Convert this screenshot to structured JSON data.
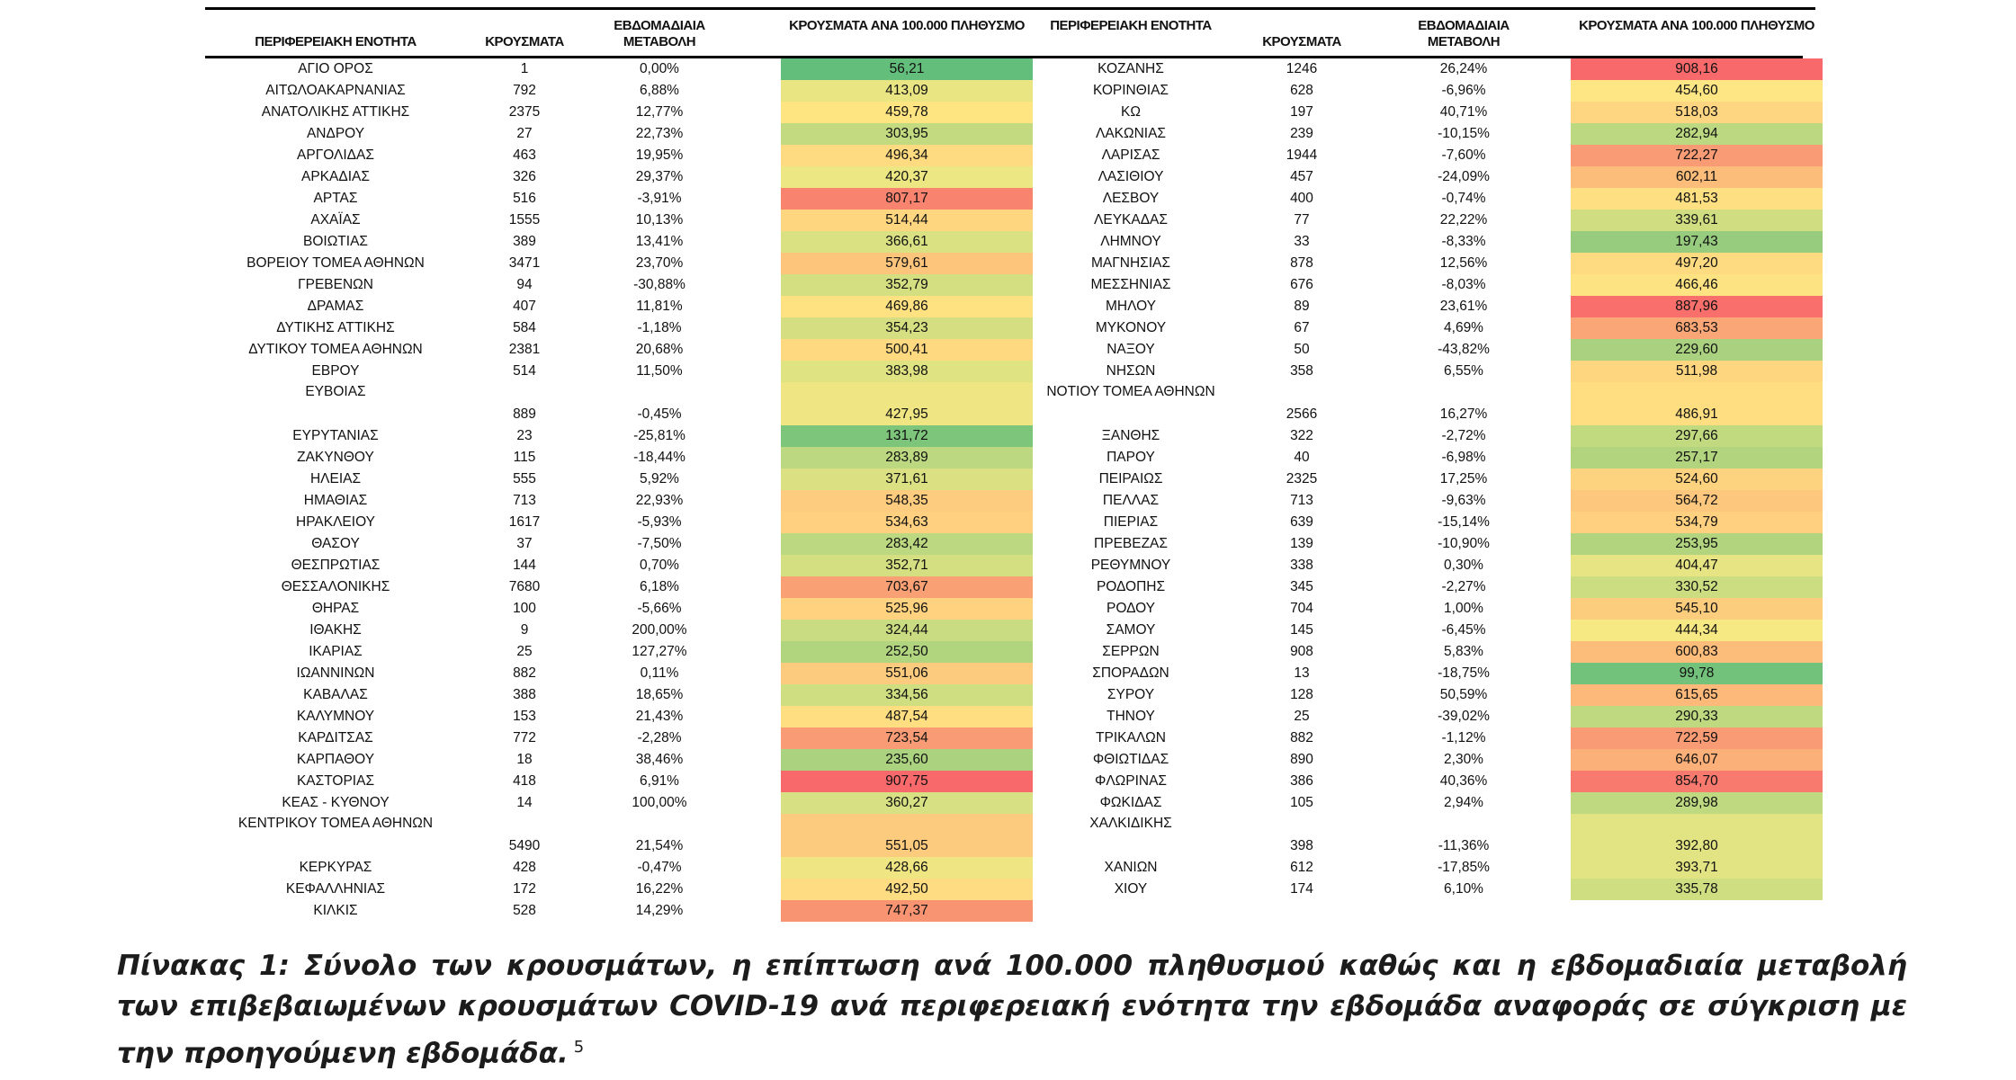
{
  "headers": {
    "region": "ΠΕΡΙΦΕΡΕΙΑΚΗ ΕΝΟΤΗΤΑ",
    "cases": "ΚΡΟΥΣΜΑΤΑ",
    "weekly_change": "ΕΒΔΟΜΑΔΙΑΙΑ ΜΕΤΑΒΟΛΗ",
    "rate": "ΚΡΟΥΣΜΑΤΑ ΑΝΑ 100.000 ΠΛΗΘΥΣΜΟ"
  },
  "left_rows": [
    {
      "region": "ΑΓΙΟ ΟΡΟΣ",
      "cases": "1",
      "change": "0,00%",
      "rate": "56,21",
      "color": "#63be7b"
    },
    {
      "region": "ΑΙΤΩΛΟΑΚΑΡΝΑΝΙΑΣ",
      "cases": "792",
      "change": "6,88%",
      "rate": "413,09",
      "color": "#e9e583"
    },
    {
      "region": "ΑΝΑΤΟΛΙΚΗΣ ΑΤΤΙΚΗΣ",
      "cases": "2375",
      "change": "12,77%",
      "rate": "459,78",
      "color": "#fee582"
    },
    {
      "region": "ΑΝΔΡΟΥ",
      "cases": "27",
      "change": "22,73%",
      "rate": "303,95",
      "color": "#c3da80"
    },
    {
      "region": "ΑΡΓΟΛΙΔΑΣ",
      "cases": "463",
      "change": "19,95%",
      "rate": "496,34",
      "color": "#fedb80"
    },
    {
      "region": "ΑΡΚΑΔΙΑΣ",
      "cases": "326",
      "change": "29,37%",
      "rate": "420,37",
      "color": "#ece683"
    },
    {
      "region": "ΑΡΤΑΣ",
      "cases": "516",
      "change": "-3,91%",
      "rate": "807,17",
      "color": "#f8836f"
    },
    {
      "region": "ΑΧΑΪΑΣ",
      "cases": "1555",
      "change": "10,13%",
      "rate": "514,44",
      "color": "#fed680"
    },
    {
      "region": "ΒΟΙΩΤΙΑΣ",
      "cases": "389",
      "change": "13,41%",
      "rate": "366,61",
      "color": "#d9e182"
    },
    {
      "region": "ΒΟΡΕΙΟΥ ΤΟΜΕΑ ΑΘΗΝΩΝ",
      "cases": "3471",
      "change": "23,70%",
      "rate": "579,61",
      "color": "#fdc47c"
    },
    {
      "region": "ΓΡΕΒΕΝΩΝ",
      "cases": "94",
      "change": "-30,88%",
      "rate": "352,79",
      "color": "#d4df81"
    },
    {
      "region": "ΔΡΑΜΑΣ",
      "cases": "407",
      "change": "11,81%",
      "rate": "469,86",
      "color": "#fee282"
    },
    {
      "region": "ΔΥΤΙΚΗΣ ΑΤΤΙΚΗΣ",
      "cases": "584",
      "change": "-1,18%",
      "rate": "354,23",
      "color": "#d5df81"
    },
    {
      "region": "ΔΥΤΙΚΟΥ ΤΟΜΕΑ ΑΘΗΝΩΝ",
      "cases": "2381",
      "change": "20,68%",
      "rate": "500,41",
      "color": "#fed980"
    },
    {
      "region": "ΕΒΡΟΥ",
      "cases": "514",
      "change": "11,50%",
      "rate": "383,98",
      "color": "#dfe382"
    },
    {
      "region": "ΕΥΒΟΙΑΣ",
      "cases": "889",
      "change": "-0,45%",
      "rate": "427,95",
      "color": "#efe683",
      "tall": true
    },
    {
      "region": "ΕΥΡΥΤΑΝΙΑΣ",
      "cases": "23",
      "change": "-25,81%",
      "rate": "131,72",
      "color": "#7ec57c"
    },
    {
      "region": "ΖΑΚΥΝΘΟΥ",
      "cases": "115",
      "change": "-18,44%",
      "rate": "283,89",
      "color": "#bcd880"
    },
    {
      "region": "ΗΛΕΙΑΣ",
      "cases": "555",
      "change": "5,92%",
      "rate": "371,61",
      "color": "#dbe182"
    },
    {
      "region": "ΗΜΑΘΙΑΣ",
      "cases": "713",
      "change": "22,93%",
      "rate": "548,35",
      "color": "#fdcc7e"
    },
    {
      "region": "ΗΡΑΚΛΕΙΟΥ",
      "cases": "1617",
      "change": "-5,93%",
      "rate": "534,63",
      "color": "#fed07f"
    },
    {
      "region": "ΘΑΣΟΥ",
      "cases": "37",
      "change": "-7,50%",
      "rate": "283,42",
      "color": "#bcd880"
    },
    {
      "region": "ΘΕΣΠΡΩΤΙΑΣ",
      "cases": "144",
      "change": "0,70%",
      "rate": "352,71",
      "color": "#d4df81"
    },
    {
      "region": "ΘΕΣΣΑΛΟΝΙΚΗΣ",
      "cases": "7680",
      "change": "6,18%",
      "rate": "703,67",
      "color": "#faa075"
    },
    {
      "region": "ΘΗΡΑΣ",
      "cases": "100",
      "change": "-5,66%",
      "rate": "525,96",
      "color": "#fed27f"
    },
    {
      "region": "ΙΘΑΚΗΣ",
      "cases": "9",
      "change": "200,00%",
      "rate": "324,44",
      "color": "#cadc81"
    },
    {
      "region": "ΙΚΑΡΙΑΣ",
      "cases": "25",
      "change": "127,27%",
      "rate": "252,50",
      "color": "#b1d47f"
    },
    {
      "region": "ΙΩΑΝΝΙΝΩΝ",
      "cases": "882",
      "change": "0,11%",
      "rate": "551,06",
      "color": "#fdcb7e"
    },
    {
      "region": "ΚΑΒΑΛΑΣ",
      "cases": "388",
      "change": "18,65%",
      "rate": "334,56",
      "color": "#cede81"
    },
    {
      "region": "ΚΑΛΥΜΝΟΥ",
      "cases": "153",
      "change": "21,43%",
      "rate": "487,54",
      "color": "#fede81"
    },
    {
      "region": "ΚΑΡΔΙΤΣΑΣ",
      "cases": "772",
      "change": "-2,28%",
      "rate": "723,54",
      "color": "#f99b74"
    },
    {
      "region": "ΚΑΡΠΑΘΟΥ",
      "cases": "18",
      "change": "38,46%",
      "rate": "235,60",
      "color": "#abd27f"
    },
    {
      "region": "ΚΑΣΤΟΡΙΑΣ",
      "cases": "418",
      "change": "6,91%",
      "rate": "907,75",
      "color": "#f8696b"
    },
    {
      "region": "ΚΕΑΣ - ΚΥΘΝΟΥ",
      "cases": "14",
      "change": "100,00%",
      "rate": "360,27",
      "color": "#d7e082"
    },
    {
      "region": "ΚΕΝΤΡΙΚΟΥ ΤΟΜΕΑ ΑΘΗΝΩΝ",
      "cases": "5490",
      "change": "21,54%",
      "rate": "551,05",
      "color": "#fdcb7e",
      "tall": true
    },
    {
      "region": "ΚΕΡΚΥΡΑΣ",
      "cases": "428",
      "change": "-0,47%",
      "rate": "428,66",
      "color": "#efe683"
    },
    {
      "region": "ΚΕΦΑΛΛΗΝΙΑΣ",
      "cases": "172",
      "change": "16,22%",
      "rate": "492,50",
      "color": "#fedc81"
    },
    {
      "region": "ΚΙΛΚΙΣ",
      "cases": "528",
      "change": "14,29%",
      "rate": "747,37",
      "color": "#f99473"
    }
  ],
  "right_rows": [
    {
      "region": "ΚΟΖΑΝΗΣ",
      "cases": "1246",
      "change": "26,24%",
      "rate": "908,16",
      "color": "#f8696b"
    },
    {
      "region": "ΚΟΡΙΝΘΙΑΣ",
      "cases": "628",
      "change": "-6,96%",
      "rate": "454,60",
      "color": "#fde683"
    },
    {
      "region": "ΚΩ",
      "cases": "197",
      "change": "40,71%",
      "rate": "518,03",
      "color": "#fed580"
    },
    {
      "region": "ΛΑΚΩΝΙΑΣ",
      "cases": "239",
      "change": "-10,15%",
      "rate": "282,94",
      "color": "#bcd880"
    },
    {
      "region": "ΛΑΡΙΣΑΣ",
      "cases": "1944",
      "change": "-7,60%",
      "rate": "722,27",
      "color": "#f99b74"
    },
    {
      "region": "ΛΑΣΙΘΙΟΥ",
      "cases": "457",
      "change": "-24,09%",
      "rate": "602,11",
      "color": "#fcbd7b"
    },
    {
      "region": "ΛΕΣΒΟΥ",
      "cases": "400",
      "change": "-0,74%",
      "rate": "481,53",
      "color": "#fedf81"
    },
    {
      "region": "ΛΕΥΚΑΔΑΣ",
      "cases": "77",
      "change": "22,22%",
      "rate": "339,61",
      "color": "#d0de81"
    },
    {
      "region": "ΛΗΜΝΟΥ",
      "cases": "33",
      "change": "-8,33%",
      "rate": "197,43",
      "color": "#97cc7e"
    },
    {
      "region": "ΜΑΓΝΗΣΙΑΣ",
      "cases": "878",
      "change": "12,56%",
      "rate": "497,20",
      "color": "#fedb80"
    },
    {
      "region": "ΜΕΣΣΗΝΙΑΣ",
      "cases": "676",
      "change": "-8,03%",
      "rate": "466,46",
      "color": "#fee382"
    },
    {
      "region": "ΜΗΛΟΥ",
      "cases": "89",
      "change": "23,61%",
      "rate": "887,96",
      "color": "#f86f6c"
    },
    {
      "region": "ΜΥΚΟΝΟΥ",
      "cases": "67",
      "change": "4,69%",
      "rate": "683,53",
      "color": "#faa676"
    },
    {
      "region": "ΝΑΞΟΥ",
      "cases": "50",
      "change": "-43,82%",
      "rate": "229,60",
      "color": "#a9d17f"
    },
    {
      "region": "ΝΗΣΩΝ",
      "cases": "358",
      "change": "6,55%",
      "rate": "511,98",
      "color": "#fed680"
    },
    {
      "region": "ΝΟΤΙΟΥ ΤΟΜΕΑ ΑΘΗΝΩΝ",
      "cases": "2566",
      "change": "16,27%",
      "rate": "486,91",
      "color": "#fede81",
      "tall": true
    },
    {
      "region": "ΞΑΝΘΗΣ",
      "cases": "322",
      "change": "-2,72%",
      "rate": "297,66",
      "color": "#c1da80"
    },
    {
      "region": "ΠΑΡΟΥ",
      "cases": "40",
      "change": "-6,98%",
      "rate": "257,17",
      "color": "#b3d47f"
    },
    {
      "region": "ΠΕΙΡΑΙΩΣ",
      "cases": "2325",
      "change": "17,25%",
      "rate": "524,60",
      "color": "#fed37f"
    },
    {
      "region": "ΠΕΛΛΑΣ",
      "cases": "713",
      "change": "-9,63%",
      "rate": "564,72",
      "color": "#fdc87d"
    },
    {
      "region": "ΠΙΕΡΙΑΣ",
      "cases": "639",
      "change": "-15,14%",
      "rate": "534,79",
      "color": "#fed07f"
    },
    {
      "region": "ΠΡΕΒΕΖΑΣ",
      "cases": "139",
      "change": "-10,90%",
      "rate": "253,95",
      "color": "#b2d47f"
    },
    {
      "region": "ΡΕΘΥΜΝΟΥ",
      "cases": "338",
      "change": "0,30%",
      "rate": "404,47",
      "color": "#e6e483"
    },
    {
      "region": "ΡΟΔΟΠΗΣ",
      "cases": "345",
      "change": "-2,27%",
      "rate": "330,52",
      "color": "#ccdd81"
    },
    {
      "region": "ΡΟΔΟΥ",
      "cases": "704",
      "change": "1,00%",
      "rate": "545,10",
      "color": "#fdcd7e"
    },
    {
      "region": "ΣΑΜΟΥ",
      "cases": "145",
      "change": "-6,45%",
      "rate": "444,34",
      "color": "#f6e883"
    },
    {
      "region": "ΣΕΡΡΩΝ",
      "cases": "908",
      "change": "5,83%",
      "rate": "600,83",
      "color": "#fcbd7b"
    },
    {
      "region": "ΣΠΟΡΑΔΩΝ",
      "cases": "13",
      "change": "-18,75%",
      "rate": "99,78",
      "color": "#72c27c"
    },
    {
      "region": "ΣΥΡΟΥ",
      "cases": "128",
      "change": "50,59%",
      "rate": "615,65",
      "color": "#fcb97a"
    },
    {
      "region": "ΤΗΝΟΥ",
      "cases": "25",
      "change": "-39,02%",
      "rate": "290,33",
      "color": "#bed980"
    },
    {
      "region": "ΤΡΙΚΑΛΩΝ",
      "cases": "882",
      "change": "-1,12%",
      "rate": "722,59",
      "color": "#f99b74"
    },
    {
      "region": "ΦΘΙΩΤΙΔΑΣ",
      "cases": "890",
      "change": "2,30%",
      "rate": "646,07",
      "color": "#fbb079"
    },
    {
      "region": "ΦΛΩΡΙΝΑΣ",
      "cases": "386",
      "change": "40,36%",
      "rate": "854,70",
      "color": "#f87a6e"
    },
    {
      "region": "ΦΩΚΙΔΑΣ",
      "cases": "105",
      "change": "2,94%",
      "rate": "289,98",
      "color": "#bed980"
    },
    {
      "region": "ΧΑΛΚΙΔΙΚΗΣ",
      "cases": "398",
      "change": "-11,36%",
      "rate": "392,80",
      "color": "#e2e382",
      "tall": true
    },
    {
      "region": "ΧΑΝΙΩΝ",
      "cases": "612",
      "change": "-17,85%",
      "rate": "393,71",
      "color": "#e2e382"
    },
    {
      "region": "ΧΙΟΥ",
      "cases": "174",
      "change": "6,10%",
      "rate": "335,78",
      "color": "#cede81"
    }
  ],
  "caption": {
    "text": "Πίνακας 1: Σύνολο των κρουσμάτων, η επίπτωση ανά 100.000 πληθυσμού καθώς και η εβδομαδιαία μεταβολή των επιβεβαιωμένων κρουσμάτων COVID-19 ανά περιφερειακή ενότητα την εβδομάδα αναφοράς σε σύγκριση με την προηγούμενη εβδομάδα.",
    "footnote": "5"
  }
}
